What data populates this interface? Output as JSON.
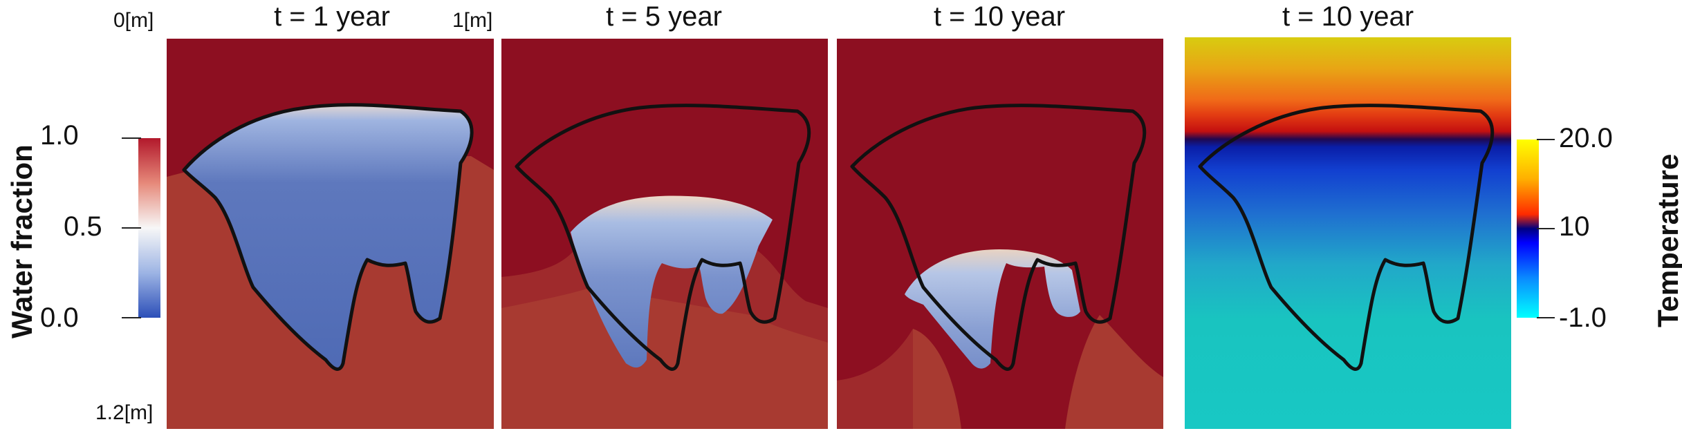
{
  "panels": [
    {
      "title": "t = 1 year"
    },
    {
      "title": "t = 5 year"
    },
    {
      "title": "t = 10 year"
    },
    {
      "title": "t = 10 year"
    }
  ],
  "coords": {
    "top_left": "0[m]",
    "top_right": "1[m]",
    "bottom_left": "1.2[m]"
  },
  "water_colorbar": {
    "label": "Water fraction",
    "ticks": [
      "1.0",
      "0.5",
      "0.0"
    ],
    "colors": [
      "#b2182b",
      "#f7f7f7",
      "#2c4fb8"
    ]
  },
  "temperature_colorbar": {
    "label": "Temperature",
    "ticks": [
      "20.0",
      "10",
      "-1.0"
    ],
    "colors": [
      "#ffff00",
      "#ff0000",
      "#000080",
      "#0000ff",
      "#00ffff"
    ]
  },
  "field_colors": {
    "dry": "#8d0f21",
    "wet_soil": "#a83a31",
    "water": "#4a66b2"
  }
}
